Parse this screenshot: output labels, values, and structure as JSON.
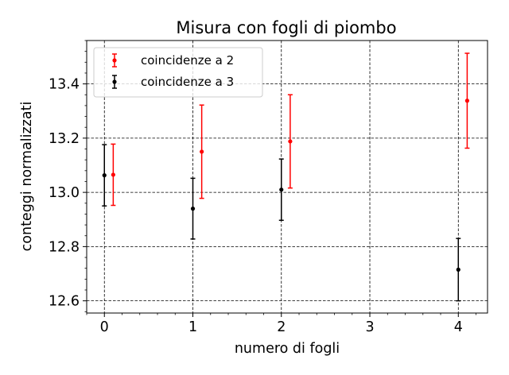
{
  "chart_data": {
    "type": "scatter",
    "title": "Misura con fogli di piombo",
    "xlabel": "numero di fogli",
    "ylabel": "conteggi normalizzati",
    "xlim": [
      -0.2,
      4.33
    ],
    "ylim": [
      12.555,
      13.56
    ],
    "x_ticks": [
      0,
      1,
      2,
      3,
      4
    ],
    "x_tick_labels": [
      "0",
      "1",
      "2",
      "3",
      "4"
    ],
    "y_ticks": [
      12.6,
      12.8,
      13.0,
      13.2,
      13.4
    ],
    "y_tick_labels": [
      "12.6",
      "12.8",
      "13.0",
      "13.2",
      "13.4"
    ],
    "grid": true,
    "grid_style": "dashed",
    "legend_position": "top-left",
    "series": [
      {
        "name": "coincidenze a 2",
        "color": "#ff0000",
        "points": [
          {
            "x": 0.1,
            "y": 13.065,
            "err": 0.113
          },
          {
            "x": 1.1,
            "y": 13.15,
            "err": 0.172
          },
          {
            "x": 2.1,
            "y": 13.188,
            "err": 0.172
          },
          {
            "x": 4.1,
            "y": 13.338,
            "err": 0.175
          }
        ]
      },
      {
        "name": "coincidenze a 3",
        "color": "#000000",
        "points": [
          {
            "x": 0,
            "y": 13.063,
            "err": 0.113
          },
          {
            "x": 1,
            "y": 12.94,
            "err": 0.112
          },
          {
            "x": 2,
            "y": 13.01,
            "err": 0.113
          },
          {
            "x": 4,
            "y": 12.715,
            "err": 0.115
          }
        ]
      }
    ]
  }
}
